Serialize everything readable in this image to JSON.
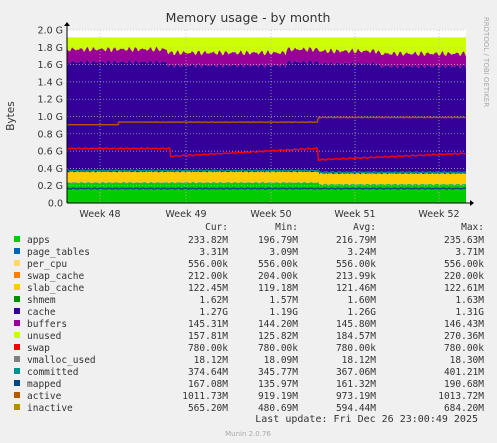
{
  "chart_data": {
    "type": "area",
    "title": "Memory usage - by month",
    "ylabel": "Bytes",
    "side_label": "RRDTOOL / TOBI OETIKER",
    "ylim": [
      0,
      2.0
    ],
    "y_ticks": [
      "0.0",
      "0.2 G",
      "0.4 G",
      "0.6 G",
      "0.8 G",
      "1.0 G",
      "1.2 G",
      "1.4 G",
      "1.6 G",
      "1.8 G",
      "2.0 G"
    ],
    "x_ticks": [
      "Week 48",
      "Week 49",
      "Week 50",
      "Week 51",
      "Week 52"
    ],
    "grid": true,
    "stacked_gb": {
      "apps": 0.234,
      "page_tables": 0.003,
      "per_cpu": 0.001,
      "swap_cache": 0.0,
      "slab_cache": 0.122,
      "shmem": 0.002,
      "cache": 1.27,
      "buffers": 0.145,
      "unused": 0.158
    },
    "line_gb": {
      "committed": 0.375,
      "mapped": 0.167,
      "active": 1.012,
      "inactive": 0.565
    },
    "columns": [
      "Cur:",
      "Min:",
      "Avg:",
      "Max:"
    ],
    "legend": [
      {
        "name": "apps",
        "color": "#00cc00",
        "cur": "233.82M",
        "min": "196.79M",
        "avg": "216.79M",
        "max": "235.63M"
      },
      {
        "name": "page_tables",
        "color": "#0066b3",
        "cur": "3.31M",
        "min": "3.09M",
        "avg": "3.24M",
        "max": "3.71M"
      },
      {
        "name": "per_cpu",
        "color": "#ffd86a",
        "cur": "556.00k",
        "min": "556.00k",
        "avg": "556.00k",
        "max": "556.00k"
      },
      {
        "name": "swap_cache",
        "color": "#ff8000",
        "cur": "212.00k",
        "min": "204.00k",
        "avg": "213.99k",
        "max": "220.00k"
      },
      {
        "name": "slab_cache",
        "color": "#ffcc00",
        "cur": "122.45M",
        "min": "119.18M",
        "avg": "121.46M",
        "max": "122.61M"
      },
      {
        "name": "shmem",
        "color": "#008f00",
        "cur": "1.62M",
        "min": "1.57M",
        "avg": "1.60M",
        "max": "1.63M"
      },
      {
        "name": "cache",
        "color": "#330099",
        "cur": "1.27G",
        "min": "1.19G",
        "avg": "1.26G",
        "max": "1.31G"
      },
      {
        "name": "buffers",
        "color": "#990099",
        "cur": "145.31M",
        "min": "144.20M",
        "avg": "145.80M",
        "max": "146.43M"
      },
      {
        "name": "unused",
        "color": "#ccff00",
        "cur": "157.81M",
        "min": "125.82M",
        "avg": "184.57M",
        "max": "270.36M"
      },
      {
        "name": "swap",
        "color": "#ff0000",
        "cur": "780.00k",
        "min": "780.00k",
        "avg": "780.00k",
        "max": "780.00k"
      },
      {
        "name": "vmalloc_used",
        "color": "#808080",
        "cur": "18.12M",
        "min": "18.09M",
        "avg": "18.12M",
        "max": "18.30M"
      },
      {
        "name": "committed",
        "color": "#008f8f",
        "cur": "374.64M",
        "min": "345.77M",
        "avg": "367.06M",
        "max": "401.21M"
      },
      {
        "name": "mapped",
        "color": "#00487d",
        "cur": "167.08M",
        "min": "135.97M",
        "avg": "161.32M",
        "max": "190.68M"
      },
      {
        "name": "active",
        "color": "#b35a00",
        "cur": "1011.73M",
        "min": "919.19M",
        "avg": "973.19M",
        "max": "1013.72M"
      },
      {
        "name": "inactive",
        "color": "#b38f00",
        "cur": "565.20M",
        "min": "480.69M",
        "avg": "594.44M",
        "max": "684.20M"
      }
    ],
    "last_update": "Last update: Fri Dec 26 23:00:49 2025",
    "footer": "Munin 2.0.76"
  }
}
